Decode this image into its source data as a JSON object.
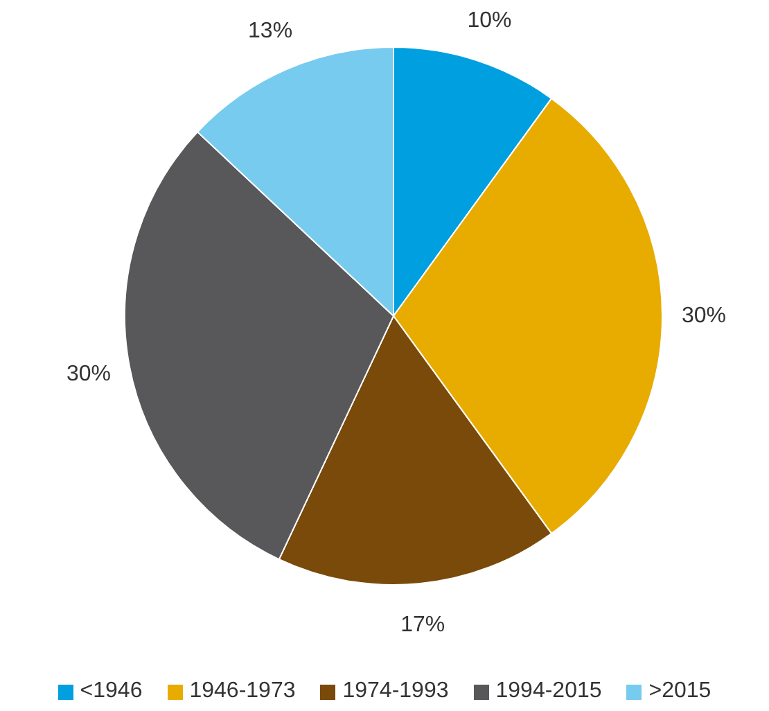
{
  "chart_data": {
    "type": "pie",
    "categories": [
      "<1946",
      "1946-1973",
      "1974-1993",
      "1994-2015",
      ">2015"
    ],
    "values": [
      10,
      30,
      17,
      30,
      13
    ],
    "value_labels": [
      "10%",
      "30%",
      "17%",
      "30%",
      "13%"
    ],
    "colors": [
      "#009fe0",
      "#e8ab00",
      "#7a4a0a",
      "#58585a",
      "#76cbef"
    ],
    "legend": "bottom"
  }
}
